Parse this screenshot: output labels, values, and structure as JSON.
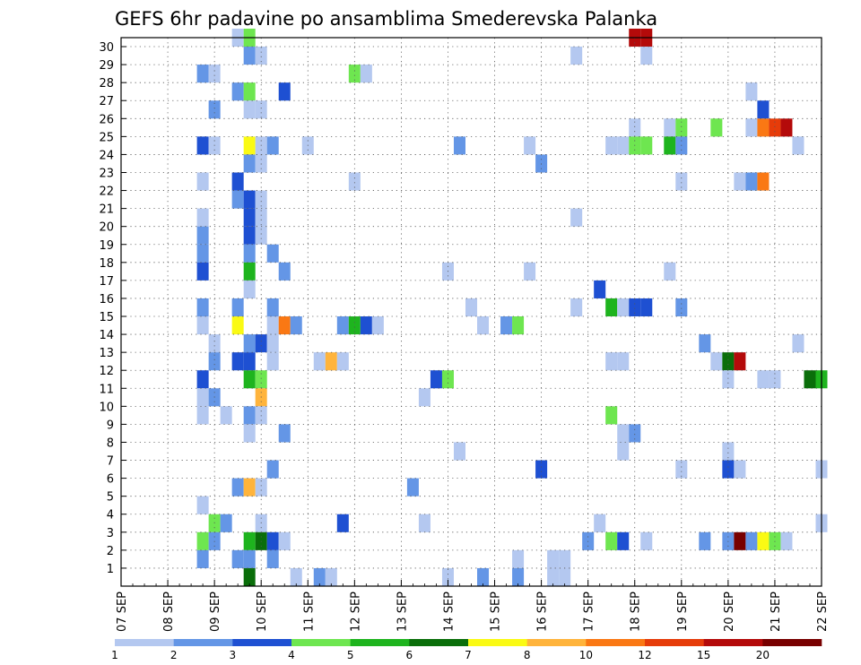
{
  "chart_data": {
    "type": "heatmap",
    "title": "GEFS 6hr padavine po ansamblima Smederevska Palanka",
    "xlabel": "",
    "ylabel": "",
    "x_tick_labels": [
      "07 SEP",
      "08 SEP",
      "09 SEP",
      "10 SEP",
      "11 SEP",
      "12 SEP",
      "13 SEP",
      "14 SEP",
      "15 SEP",
      "16 SEP",
      "17 SEP",
      "18 SEP",
      "19 SEP",
      "20 SEP",
      "21 SEP",
      "22 SEP"
    ],
    "y_tick_labels": [
      "1",
      "2",
      "3",
      "4",
      "5",
      "6",
      "7",
      "8",
      "9",
      "10",
      "11",
      "12",
      "13",
      "14",
      "15",
      "16",
      "17",
      "18",
      "19",
      "20",
      "21",
      "22",
      "23",
      "24",
      "25",
      "26",
      "27",
      "28",
      "29",
      "30"
    ],
    "x_unit": "6-hour step from 07 SEP 00Z",
    "x_range": [
      0,
      60
    ],
    "y_range": [
      0,
      30
    ],
    "grid": true,
    "colorbar": {
      "labels": [
        "1",
        "2",
        "3",
        "4",
        "5",
        "6",
        "7",
        "8",
        "10",
        "12",
        "15",
        "20"
      ],
      "colors": [
        "#b4c8f0",
        "#6496e6",
        "#1e50d2",
        "#6ee650",
        "#1eb41e",
        "#0a6e0a",
        "#fafa14",
        "#ffb43c",
        "#fa7814",
        "#e63c0a",
        "#b40a0a",
        "#780000"
      ]
    },
    "cells": [
      [
        10,
        30,
        0
      ],
      [
        11,
        30,
        3
      ],
      [
        44,
        30,
        10
      ],
      [
        45,
        30,
        10
      ],
      [
        11,
        29,
        1
      ],
      [
        12,
        29,
        0
      ],
      [
        39,
        29,
        0
      ],
      [
        45,
        29,
        0
      ],
      [
        7,
        28,
        1
      ],
      [
        8,
        28,
        0
      ],
      [
        20,
        28,
        3
      ],
      [
        21,
        28,
        0
      ],
      [
        10,
        27,
        1
      ],
      [
        11,
        27,
        3
      ],
      [
        14,
        27,
        2
      ],
      [
        54,
        27,
        0
      ],
      [
        8,
        26,
        1
      ],
      [
        11,
        26,
        0
      ],
      [
        12,
        26,
        0
      ],
      [
        55,
        26,
        2
      ],
      [
        44,
        25,
        0
      ],
      [
        47,
        25,
        0
      ],
      [
        48,
        25,
        3
      ],
      [
        51,
        25,
        3
      ],
      [
        54,
        25,
        0
      ],
      [
        55,
        25,
        8
      ],
      [
        56,
        25,
        9
      ],
      [
        57,
        25,
        10
      ],
      [
        7,
        24,
        2
      ],
      [
        8,
        24,
        0
      ],
      [
        11,
        24,
        6
      ],
      [
        12,
        24,
        0
      ],
      [
        13,
        24,
        1
      ],
      [
        16,
        24,
        0
      ],
      [
        29,
        24,
        1
      ],
      [
        35,
        24,
        0
      ],
      [
        42,
        24,
        0
      ],
      [
        43,
        24,
        0
      ],
      [
        44,
        24,
        3
      ],
      [
        45,
        24,
        3
      ],
      [
        47,
        24,
        4
      ],
      [
        48,
        24,
        1
      ],
      [
        58,
        24,
        0
      ],
      [
        11,
        23,
        1
      ],
      [
        12,
        23,
        0
      ],
      [
        36,
        23,
        1
      ],
      [
        7,
        22,
        0
      ],
      [
        10,
        22,
        2
      ],
      [
        20,
        22,
        0
      ],
      [
        48,
        22,
        0
      ],
      [
        53,
        22,
        0
      ],
      [
        54,
        22,
        1
      ],
      [
        55,
        22,
        8
      ],
      [
        10,
        21,
        1
      ],
      [
        11,
        21,
        2
      ],
      [
        12,
        21,
        0
      ],
      [
        7,
        20,
        0
      ],
      [
        11,
        20,
        2
      ],
      [
        12,
        20,
        0
      ],
      [
        39,
        20,
        0
      ],
      [
        7,
        19,
        1
      ],
      [
        11,
        19,
        2
      ],
      [
        12,
        19,
        0
      ],
      [
        7,
        18,
        1
      ],
      [
        11,
        18,
        1
      ],
      [
        13,
        18,
        1
      ],
      [
        7,
        17,
        2
      ],
      [
        11,
        17,
        4
      ],
      [
        14,
        17,
        1
      ],
      [
        28,
        17,
        0
      ],
      [
        35,
        17,
        0
      ],
      [
        47,
        17,
        0
      ],
      [
        11,
        16,
        0
      ],
      [
        41,
        16,
        2
      ],
      [
        7,
        15,
        1
      ],
      [
        10,
        15,
        1
      ],
      [
        13,
        15,
        1
      ],
      [
        30,
        15,
        0
      ],
      [
        39,
        15,
        0
      ],
      [
        42,
        15,
        4
      ],
      [
        43,
        15,
        0
      ],
      [
        44,
        15,
        2
      ],
      [
        45,
        15,
        2
      ],
      [
        48,
        15,
        1
      ],
      [
        7,
        14,
        0
      ],
      [
        10,
        14,
        6
      ],
      [
        13,
        14,
        0
      ],
      [
        14,
        14,
        8
      ],
      [
        15,
        14,
        1
      ],
      [
        19,
        14,
        1
      ],
      [
        20,
        14,
        4
      ],
      [
        21,
        14,
        2
      ],
      [
        22,
        14,
        0
      ],
      [
        31,
        14,
        0
      ],
      [
        33,
        14,
        1
      ],
      [
        34,
        14,
        3
      ],
      [
        8,
        13,
        0
      ],
      [
        11,
        13,
        1
      ],
      [
        12,
        13,
        2
      ],
      [
        13,
        13,
        0
      ],
      [
        50,
        13,
        1
      ],
      [
        58,
        13,
        0
      ],
      [
        8,
        12,
        1
      ],
      [
        10,
        12,
        2
      ],
      [
        11,
        12,
        2
      ],
      [
        13,
        12,
        0
      ],
      [
        17,
        12,
        0
      ],
      [
        18,
        12,
        7
      ],
      [
        19,
        12,
        0
      ],
      [
        42,
        12,
        0
      ],
      [
        43,
        12,
        0
      ],
      [
        51,
        12,
        0
      ],
      [
        52,
        12,
        5
      ],
      [
        53,
        12,
        10
      ],
      [
        7,
        11,
        2
      ],
      [
        11,
        11,
        4
      ],
      [
        12,
        11,
        3
      ],
      [
        27,
        11,
        2
      ],
      [
        28,
        11,
        3
      ],
      [
        52,
        11,
        0
      ],
      [
        55,
        11,
        0
      ],
      [
        56,
        11,
        0
      ],
      [
        59,
        11,
        5
      ],
      [
        60,
        11,
        4
      ],
      [
        7,
        10,
        0
      ],
      [
        8,
        10,
        1
      ],
      [
        12,
        10,
        7
      ],
      [
        26,
        10,
        0
      ],
      [
        7,
        9,
        0
      ],
      [
        9,
        9,
        0
      ],
      [
        11,
        9,
        1
      ],
      [
        12,
        9,
        0
      ],
      [
        42,
        9,
        3
      ],
      [
        11,
        8,
        0
      ],
      [
        14,
        8,
        1
      ],
      [
        43,
        8,
        0
      ],
      [
        44,
        8,
        1
      ],
      [
        29,
        7,
        0
      ],
      [
        43,
        7,
        0
      ],
      [
        52,
        7,
        0
      ],
      [
        13,
        6,
        1
      ],
      [
        36,
        6,
        2
      ],
      [
        48,
        6,
        0
      ],
      [
        52,
        6,
        2
      ],
      [
        53,
        6,
        0
      ],
      [
        60,
        6,
        0
      ],
      [
        10,
        5,
        1
      ],
      [
        11,
        5,
        7
      ],
      [
        12,
        5,
        0
      ],
      [
        25,
        5,
        1
      ],
      [
        7,
        4,
        0
      ],
      [
        8,
        3,
        3
      ],
      [
        9,
        3,
        1
      ],
      [
        12,
        3,
        0
      ],
      [
        19,
        3,
        2
      ],
      [
        26,
        3,
        0
      ],
      [
        41,
        3,
        0
      ],
      [
        60,
        3,
        0
      ],
      [
        7,
        2,
        3
      ],
      [
        8,
        2,
        1
      ],
      [
        11,
        2,
        4
      ],
      [
        12,
        2,
        5
      ],
      [
        13,
        2,
        2
      ],
      [
        14,
        2,
        0
      ],
      [
        40,
        2,
        1
      ],
      [
        42,
        2,
        3
      ],
      [
        43,
        2,
        2
      ],
      [
        45,
        2,
        0
      ],
      [
        50,
        2,
        1
      ],
      [
        52,
        2,
        1
      ],
      [
        53,
        2,
        11
      ],
      [
        54,
        2,
        1
      ],
      [
        55,
        2,
        6
      ],
      [
        56,
        2,
        3
      ],
      [
        57,
        2,
        0
      ],
      [
        7,
        1,
        1
      ],
      [
        10,
        1,
        1
      ],
      [
        11,
        1,
        1
      ],
      [
        13,
        1,
        1
      ],
      [
        34,
        1,
        0
      ],
      [
        37,
        1,
        0
      ],
      [
        38,
        1,
        0
      ],
      [
        11,
        0,
        5
      ],
      [
        15,
        0,
        0
      ],
      [
        17,
        0,
        1
      ],
      [
        18,
        0,
        0
      ],
      [
        28,
        0,
        0
      ],
      [
        31,
        0,
        1
      ],
      [
        34,
        0,
        1
      ],
      [
        37,
        0,
        0
      ],
      [
        38,
        0,
        0
      ]
    ]
  }
}
